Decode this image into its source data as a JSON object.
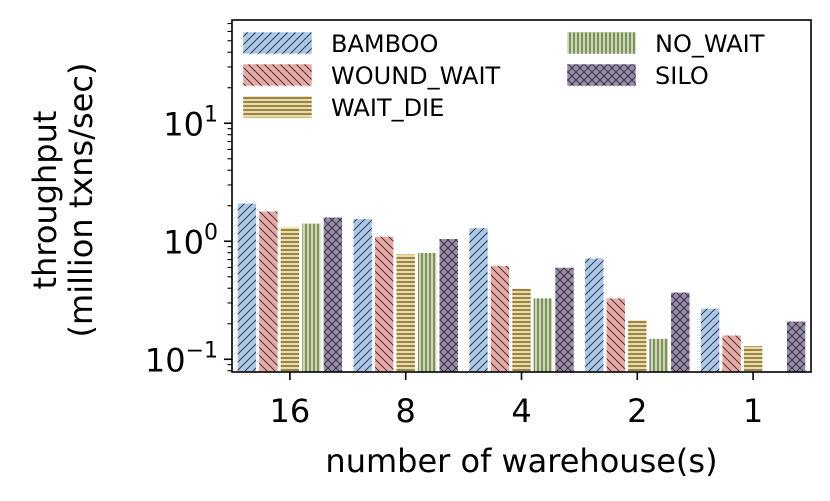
{
  "chart_data": {
    "type": "bar",
    "title": "",
    "xlabel": "number of warehouse(s)",
    "ylabel_line1": "throughput",
    "ylabel_line2": "(million txns/sec)",
    "yscale": "log",
    "ylim": [
      0.078,
      75
    ],
    "categories": [
      "16",
      "8",
      "4",
      "2",
      "1"
    ],
    "yticks": [
      {
        "value": 0.1,
        "base": "10",
        "exp": "−1"
      },
      {
        "value": 1,
        "base": "10",
        "exp": "0"
      },
      {
        "value": 10,
        "base": "10",
        "exp": "1"
      }
    ],
    "legend_position": "top",
    "series": [
      {
        "name": "BAMBOO",
        "color": "#a9c8e8",
        "pattern": "diag-up",
        "values": [
          2.1,
          1.55,
          1.3,
          0.72,
          0.27
        ]
      },
      {
        "name": "WOUND_WAIT",
        "color": "#e8a9a3",
        "pattern": "diag-down",
        "values": [
          1.8,
          1.1,
          0.62,
          0.33,
          0.16
        ]
      },
      {
        "name": "WAIT_DIE",
        "color": "#f3dc8c",
        "pattern": "horizontal",
        "values": [
          1.32,
          0.78,
          0.4,
          0.215,
          0.13
        ]
      },
      {
        "name": "NO_WAIT",
        "color": "#c9dca0",
        "pattern": "vertical",
        "values": [
          1.42,
          0.8,
          0.33,
          0.15,
          null
        ]
      },
      {
        "name": "SILO",
        "color": "#9a8ca8",
        "pattern": "cross",
        "values": [
          1.6,
          1.05,
          0.6,
          0.37,
          0.21
        ]
      }
    ]
  }
}
